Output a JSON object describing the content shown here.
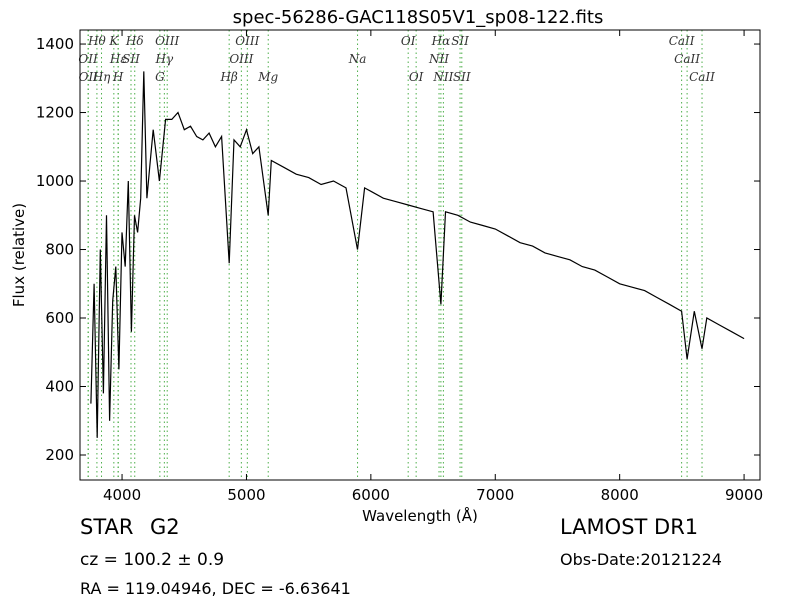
{
  "chart_data": {
    "type": "line",
    "title": "spec-56286-GAC118S05V1_sp08-122.fits",
    "x_label": "Wavelength (Å)",
    "y_label": "Flux (relative)",
    "xlim": [
      3662,
      9128
    ],
    "ylim": [
      127,
      1441
    ],
    "xticks": [
      4000,
      5000,
      6000,
      7000,
      8000,
      9000
    ],
    "yticks": [
      200,
      400,
      600,
      800,
      1000,
      1200,
      1400
    ],
    "color": "#000000",
    "x": [
      3750,
      3775,
      3800,
      3825,
      3850,
      3875,
      3900,
      3925,
      3950,
      3975,
      4000,
      4025,
      4050,
      4075,
      4100,
      4125,
      4150,
      4175,
      4200,
      4225,
      4250,
      4300,
      4350,
      4400,
      4450,
      4500,
      4550,
      4600,
      4650,
      4700,
      4750,
      4800,
      4861,
      4900,
      4950,
      5000,
      5050,
      5100,
      5175,
      5200,
      5300,
      5400,
      5500,
      5600,
      5700,
      5800,
      5893,
      5950,
      6000,
      6100,
      6200,
      6300,
      6400,
      6500,
      6563,
      6600,
      6700,
      6800,
      6900,
      7000,
      7100,
      7200,
      7300,
      7400,
      7500,
      7600,
      7700,
      7800,
      7900,
      8000,
      8100,
      8200,
      8300,
      8400,
      8498,
      8542,
      8600,
      8662,
      8700,
      8800,
      8900,
      9000
    ],
    "values": [
      350,
      700,
      250,
      800,
      380,
      900,
      300,
      650,
      750,
      450,
      850,
      750,
      1000,
      560,
      900,
      850,
      950,
      1320,
      950,
      1050,
      1150,
      1000,
      1180,
      1180,
      1200,
      1150,
      1160,
      1130,
      1120,
      1140,
      1100,
      1130,
      760,
      1120,
      1100,
      1150,
      1080,
      1100,
      900,
      1060,
      1040,
      1020,
      1010,
      990,
      1000,
      980,
      800,
      980,
      970,
      950,
      940,
      930,
      920,
      910,
      640,
      910,
      900,
      880,
      870,
      860,
      840,
      820,
      810,
      790,
      780,
      770,
      750,
      740,
      720,
      700,
      690,
      680,
      660,
      640,
      620,
      480,
      620,
      510,
      600,
      580,
      560,
      540
    ],
    "line_color": "#4daf4a",
    "lines": [
      {
        "label": "Hθ",
        "wavelength": 3798
      },
      {
        "label": "K",
        "wavelength": 3934
      },
      {
        "label": "Hδ",
        "wavelength": 4102
      },
      {
        "label": "OIII",
        "wavelength": 4363
      },
      {
        "label": "OIII",
        "wavelength": 5007
      },
      {
        "label": "OI",
        "wavelength": 6300
      },
      {
        "label": "Hα",
        "wavelength": 6563
      },
      {
        "label": "SII",
        "wavelength": 6717
      },
      {
        "label": "CaII",
        "wavelength": 8498
      },
      {
        "label": "OII",
        "wavelength": 3727
      },
      {
        "label": "Hε",
        "wavelength": 3970
      },
      {
        "label": "SII",
        "wavelength": 4072
      },
      {
        "label": "Hγ",
        "wavelength": 4340
      },
      {
        "label": "OIII",
        "wavelength": 4959
      },
      {
        "label": "Na",
        "wavelength": 5893
      },
      {
        "label": "NII",
        "wavelength": 6548
      },
      {
        "label": "CaII",
        "wavelength": 8542
      },
      {
        "label": "OII",
        "wavelength": 3729
      },
      {
        "label": "Hη",
        "wavelength": 3835
      },
      {
        "label": "H",
        "wavelength": 3968
      },
      {
        "label": "G",
        "wavelength": 4304
      },
      {
        "label": "Hβ",
        "wavelength": 4861
      },
      {
        "label": "Mg",
        "wavelength": 5175
      },
      {
        "label": "OI",
        "wavelength": 6364
      },
      {
        "label": "NII",
        "wavelength": 6583
      },
      {
        "label": "SII",
        "wavelength": 6731
      },
      {
        "label": "CaII",
        "wavelength": 8662
      }
    ]
  },
  "info": {
    "class": "STAR",
    "subclass": "G2",
    "redshift": "cz = 100.2 ± 0.9",
    "coords": "RA = 119.04946, DEC = -6.63641",
    "survey": "LAMOST DR1",
    "obs_date": "Obs-Date:20121224"
  }
}
